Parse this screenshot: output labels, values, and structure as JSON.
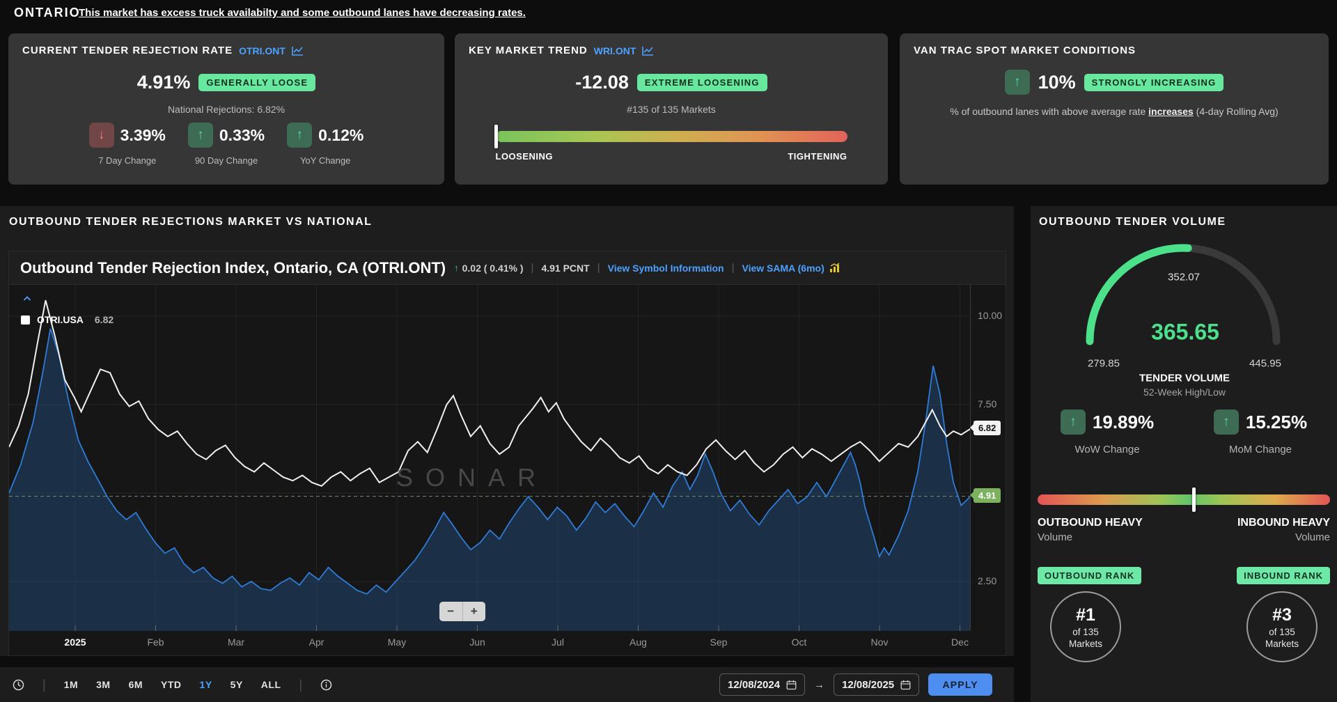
{
  "icons": {
    "up": "↑",
    "down": "↓",
    "arrow_right": "→"
  },
  "header": {
    "brand": "ONTARIO",
    "summary_link": "This market has excess truck availabilty and some outbound lanes have decreasing rates."
  },
  "cards": {
    "rejection": {
      "title": "CURRENT TENDER REJECTION RATE",
      "symbol": "OTRI.ONT",
      "value": "4.91%",
      "badge": "GENERALLY LOOSE",
      "subtitle": "National Rejections: 6.82%",
      "stats": [
        {
          "direction": "down",
          "value": "3.39%",
          "label": "7 Day Change"
        },
        {
          "direction": "up",
          "value": "0.33%",
          "label": "90 Day Change"
        },
        {
          "direction": "up",
          "value": "0.12%",
          "label": "YoY Change"
        }
      ]
    },
    "trend": {
      "title": "KEY MARKET TREND",
      "symbol": "WRI.ONT",
      "value": "-12.08",
      "badge": "EXTREME LOOSENING",
      "subtitle": "#135 of 135 Markets",
      "scale_left": "LOOSENING",
      "scale_right": "TIGHTENING",
      "marker_pos": 0.3
    },
    "van_trac": {
      "title": "VAN TRAC SPOT MARKET CONDITIONS",
      "value": "10%",
      "badge": "STRONGLY INCREASING",
      "desc_prefix": "% of outbound lanes with above average rate ",
      "desc_em": "increases",
      "desc_suffix": " (4-day Rolling Avg)"
    }
  },
  "chart_section": {
    "heading": "OUTBOUND TENDER REJECTIONS MARKET VS NATIONAL",
    "title": "Outbound Tender Rejection Index, Ontario, CA (OTRI.ONT)",
    "change": "0.02 ( 0.41% )",
    "units": "4.91 PCNT",
    "separator": "|",
    "link_symbol_info": "View Symbol Information",
    "link_sama": "View SAMA (6mo)",
    "legend_name": "OTRI.USA",
    "legend_value": "6.82",
    "watermark": "SONAR",
    "zoom_out": "−",
    "zoom_in": "+"
  },
  "chart_data": {
    "type": "line",
    "title": "Outbound Tender Rejection Index, Ontario, CA (OTRI.ONT)",
    "unit": "PCNT",
    "x_labels": [
      "2025",
      "Feb",
      "Mar",
      "Apr",
      "May",
      "Jun",
      "Jul",
      "Aug",
      "Sep",
      "Oct",
      "Nov",
      "Dec"
    ],
    "y_ticks": [
      2.5,
      5,
      7.5,
      10
    ],
    "ylim": [
      1.1,
      10.9
    ],
    "grid": true,
    "legend_position": "top-left",
    "reference": 4.91,
    "series": [
      {
        "name": "OTRI.USA",
        "color": "#f0f0f0",
        "last": 6.82,
        "tag": "white",
        "points": [
          [
            0,
            6.3
          ],
          [
            0.01,
            6.9
          ],
          [
            0.02,
            7.8
          ],
          [
            0.03,
            9.3
          ],
          [
            0.038,
            10.45
          ],
          [
            0.048,
            9.4
          ],
          [
            0.058,
            8.2
          ],
          [
            0.068,
            7.7
          ],
          [
            0.075,
            7.3
          ],
          [
            0.085,
            7.9
          ],
          [
            0.095,
            8.5
          ],
          [
            0.105,
            8.4
          ],
          [
            0.115,
            7.8
          ],
          [
            0.125,
            7.45
          ],
          [
            0.135,
            7.6
          ],
          [
            0.145,
            7.1
          ],
          [
            0.155,
            6.8
          ],
          [
            0.165,
            6.6
          ],
          [
            0.175,
            6.75
          ],
          [
            0.185,
            6.4
          ],
          [
            0.195,
            6.1
          ],
          [
            0.205,
            5.95
          ],
          [
            0.215,
            6.2
          ],
          [
            0.225,
            6.35
          ],
          [
            0.235,
            6.0
          ],
          [
            0.245,
            5.75
          ],
          [
            0.255,
            5.6
          ],
          [
            0.265,
            5.85
          ],
          [
            0.275,
            5.65
          ],
          [
            0.285,
            5.45
          ],
          [
            0.295,
            5.35
          ],
          [
            0.305,
            5.5
          ],
          [
            0.315,
            5.3
          ],
          [
            0.325,
            5.2
          ],
          [
            0.335,
            5.45
          ],
          [
            0.345,
            5.6
          ],
          [
            0.355,
            5.35
          ],
          [
            0.365,
            5.55
          ],
          [
            0.375,
            5.7
          ],
          [
            0.385,
            5.3
          ],
          [
            0.395,
            5.45
          ],
          [
            0.405,
            5.6
          ],
          [
            0.415,
            6.2
          ],
          [
            0.425,
            6.45
          ],
          [
            0.435,
            6.15
          ],
          [
            0.445,
            6.8
          ],
          [
            0.455,
            7.5
          ],
          [
            0.462,
            7.75
          ],
          [
            0.47,
            7.2
          ],
          [
            0.48,
            6.6
          ],
          [
            0.49,
            6.9
          ],
          [
            0.5,
            6.4
          ],
          [
            0.51,
            6.1
          ],
          [
            0.52,
            6.3
          ],
          [
            0.53,
            6.9
          ],
          [
            0.545,
            7.4
          ],
          [
            0.553,
            7.7
          ],
          [
            0.561,
            7.3
          ],
          [
            0.569,
            7.55
          ],
          [
            0.577,
            7.1
          ],
          [
            0.585,
            6.8
          ],
          [
            0.595,
            6.45
          ],
          [
            0.605,
            6.2
          ],
          [
            0.615,
            6.55
          ],
          [
            0.625,
            6.3
          ],
          [
            0.635,
            6.0
          ],
          [
            0.645,
            5.85
          ],
          [
            0.655,
            6.05
          ],
          [
            0.665,
            5.7
          ],
          [
            0.675,
            5.55
          ],
          [
            0.685,
            5.8
          ],
          [
            0.695,
            5.6
          ],
          [
            0.705,
            5.5
          ],
          [
            0.715,
            5.8
          ],
          [
            0.725,
            6.25
          ],
          [
            0.735,
            6.5
          ],
          [
            0.745,
            6.2
          ],
          [
            0.755,
            5.95
          ],
          [
            0.765,
            6.2
          ],
          [
            0.775,
            5.85
          ],
          [
            0.785,
            5.6
          ],
          [
            0.795,
            5.8
          ],
          [
            0.805,
            6.1
          ],
          [
            0.815,
            6.3
          ],
          [
            0.825,
            6.0
          ],
          [
            0.835,
            6.25
          ],
          [
            0.845,
            6.1
          ],
          [
            0.855,
            5.9
          ],
          [
            0.865,
            6.1
          ],
          [
            0.875,
            6.3
          ],
          [
            0.885,
            6.45
          ],
          [
            0.895,
            6.2
          ],
          [
            0.905,
            5.9
          ],
          [
            0.915,
            6.15
          ],
          [
            0.925,
            6.4
          ],
          [
            0.935,
            6.3
          ],
          [
            0.945,
            6.6
          ],
          [
            0.953,
            7.0
          ],
          [
            0.96,
            7.35
          ],
          [
            0.968,
            6.9
          ],
          [
            0.975,
            6.6
          ],
          [
            0.982,
            6.75
          ],
          [
            0.99,
            6.65
          ],
          [
            1,
            6.82
          ]
        ]
      },
      {
        "name": "OTRI.ONT",
        "color": "#2e7cd6",
        "fill": "rgba(34,78,130,0.45)",
        "last": 4.91,
        "tag": "green",
        "points": [
          [
            0,
            5.0
          ],
          [
            0.012,
            5.8
          ],
          [
            0.025,
            7.0
          ],
          [
            0.035,
            8.4
          ],
          [
            0.043,
            9.65
          ],
          [
            0.052,
            8.9
          ],
          [
            0.062,
            7.6
          ],
          [
            0.072,
            6.5
          ],
          [
            0.082,
            5.9
          ],
          [
            0.092,
            5.4
          ],
          [
            0.102,
            4.9
          ],
          [
            0.112,
            4.5
          ],
          [
            0.122,
            4.25
          ],
          [
            0.132,
            4.45
          ],
          [
            0.142,
            4.0
          ],
          [
            0.152,
            3.6
          ],
          [
            0.162,
            3.3
          ],
          [
            0.172,
            3.45
          ],
          [
            0.182,
            3.0
          ],
          [
            0.192,
            2.75
          ],
          [
            0.202,
            2.9
          ],
          [
            0.212,
            2.6
          ],
          [
            0.222,
            2.45
          ],
          [
            0.232,
            2.65
          ],
          [
            0.242,
            2.35
          ],
          [
            0.252,
            2.5
          ],
          [
            0.262,
            2.3
          ],
          [
            0.272,
            2.25
          ],
          [
            0.282,
            2.45
          ],
          [
            0.292,
            2.6
          ],
          [
            0.302,
            2.4
          ],
          [
            0.312,
            2.75
          ],
          [
            0.322,
            2.55
          ],
          [
            0.332,
            2.9
          ],
          [
            0.342,
            2.65
          ],
          [
            0.352,
            2.45
          ],
          [
            0.362,
            2.25
          ],
          [
            0.372,
            2.15
          ],
          [
            0.382,
            2.4
          ],
          [
            0.392,
            2.2
          ],
          [
            0.402,
            2.5
          ],
          [
            0.412,
            2.8
          ],
          [
            0.422,
            3.1
          ],
          [
            0.432,
            3.5
          ],
          [
            0.442,
            3.95
          ],
          [
            0.452,
            4.45
          ],
          [
            0.46,
            4.15
          ],
          [
            0.47,
            3.75
          ],
          [
            0.48,
            3.4
          ],
          [
            0.49,
            3.6
          ],
          [
            0.5,
            3.95
          ],
          [
            0.51,
            3.7
          ],
          [
            0.52,
            4.15
          ],
          [
            0.53,
            4.55
          ],
          [
            0.54,
            4.9
          ],
          [
            0.55,
            4.6
          ],
          [
            0.56,
            4.25
          ],
          [
            0.57,
            4.6
          ],
          [
            0.58,
            4.35
          ],
          [
            0.59,
            3.95
          ],
          [
            0.6,
            4.3
          ],
          [
            0.61,
            4.75
          ],
          [
            0.62,
            4.45
          ],
          [
            0.63,
            4.7
          ],
          [
            0.64,
            4.35
          ],
          [
            0.65,
            4.05
          ],
          [
            0.66,
            4.5
          ],
          [
            0.67,
            5.0
          ],
          [
            0.68,
            4.6
          ],
          [
            0.69,
            5.2
          ],
          [
            0.7,
            5.6
          ],
          [
            0.708,
            5.1
          ],
          [
            0.716,
            5.5
          ],
          [
            0.724,
            6.1
          ],
          [
            0.732,
            5.6
          ],
          [
            0.74,
            5.0
          ],
          [
            0.75,
            4.5
          ],
          [
            0.76,
            4.8
          ],
          [
            0.77,
            4.4
          ],
          [
            0.78,
            4.1
          ],
          [
            0.79,
            4.5
          ],
          [
            0.8,
            4.8
          ],
          [
            0.81,
            5.1
          ],
          [
            0.82,
            4.7
          ],
          [
            0.83,
            4.9
          ],
          [
            0.84,
            5.3
          ],
          [
            0.85,
            4.9
          ],
          [
            0.86,
            5.4
          ],
          [
            0.87,
            5.9
          ],
          [
            0.875,
            6.15
          ],
          [
            0.88,
            5.8
          ],
          [
            0.885,
            5.3
          ],
          [
            0.89,
            4.6
          ],
          [
            0.9,
            3.7
          ],
          [
            0.905,
            3.2
          ],
          [
            0.91,
            3.45
          ],
          [
            0.915,
            3.25
          ],
          [
            0.925,
            3.8
          ],
          [
            0.935,
            4.5
          ],
          [
            0.945,
            5.6
          ],
          [
            0.953,
            7.0
          ],
          [
            0.961,
            8.6
          ],
          [
            0.968,
            7.8
          ],
          [
            0.975,
            6.4
          ],
          [
            0.982,
            5.3
          ],
          [
            0.99,
            4.65
          ],
          [
            1,
            4.91
          ]
        ]
      }
    ]
  },
  "toolbar": {
    "ranges": [
      "1M",
      "3M",
      "6M",
      "YTD",
      "1Y",
      "5Y",
      "ALL"
    ],
    "active_range": "1Y",
    "date_from": "12/08/2024",
    "date_to": "12/08/2025",
    "apply_label": "APPLY"
  },
  "sidebar": {
    "heading": "OUTBOUND TENDER VOLUME",
    "gauge": {
      "current": "365.65",
      "marker": "352.07",
      "low": "279.85",
      "high": "445.95",
      "label": "TENDER VOLUME",
      "sublabel": "52-Week High/Low",
      "percent": 51.7,
      "color": "#4ce08b"
    },
    "changes": [
      {
        "value": "19.89%",
        "label": "WoW Change"
      },
      {
        "value": "15.25%",
        "label": "MoM Change"
      }
    ],
    "balance": {
      "left_title": "OUTBOUND HEAVY",
      "left_sub": "Volume",
      "right_title": "INBOUND HEAVY",
      "right_sub": "Volume",
      "marker_pos": 53.5
    },
    "ranks": [
      {
        "badge": "OUTBOUND RANK",
        "rank": "#1",
        "of": "of 135",
        "markets": "Markets"
      },
      {
        "badge": "INBOUND RANK",
        "rank": "#3",
        "of": "of 135",
        "markets": "Markets"
      }
    ]
  }
}
